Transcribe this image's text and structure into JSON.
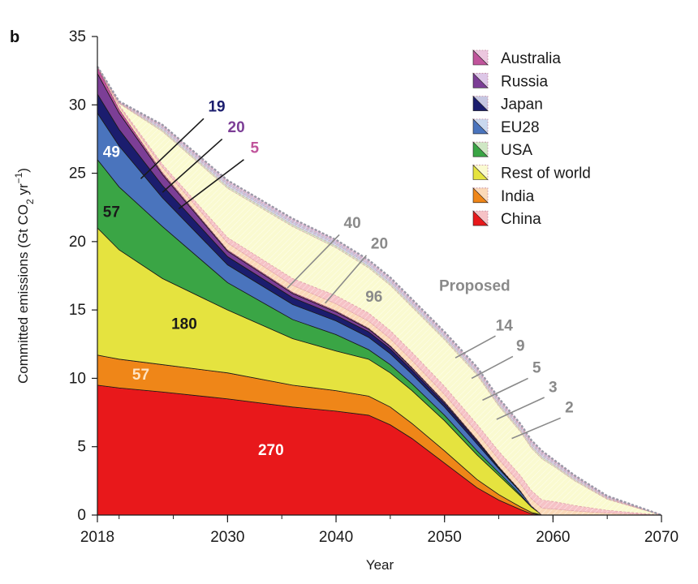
{
  "panel_label": "b",
  "chart_data": {
    "type": "area",
    "stacked": true,
    "title": "",
    "xlabel": "Year",
    "ylabel_main": "Committed emissions (Gt CO",
    "ylabel_sub": "2",
    "ylabel_unit": " yr",
    "ylabel_sup": "−1",
    "ylabel_close": ")",
    "xlim": [
      2018,
      2070
    ],
    "ylim": [
      0,
      35
    ],
    "x_ticks": [
      "2018",
      "2030",
      "2040",
      "2050",
      "2060",
      "2070"
    ],
    "y_ticks": [
      "0",
      "5",
      "10",
      "15",
      "20",
      "25",
      "30",
      "35"
    ],
    "x": [
      2018,
      2020,
      2024,
      2030,
      2036,
      2040,
      2043,
      2045,
      2047,
      2050,
      2053,
      2055,
      2057,
      2058,
      2059,
      2060,
      2062,
      2065,
      2070
    ],
    "existing_series": [
      {
        "name": "China",
        "color": "#e8181b",
        "values": [
          9.5,
          9.3,
          9.0,
          8.5,
          7.9,
          7.6,
          7.3,
          6.6,
          5.6,
          3.8,
          2.0,
          1.1,
          0.4,
          0.1,
          0,
          0,
          0,
          0,
          0
        ]
      },
      {
        "name": "India",
        "color": "#ef8618",
        "values": [
          2.2,
          2.1,
          2.0,
          1.9,
          1.6,
          1.5,
          1.4,
          1.3,
          1.1,
          0.9,
          0.6,
          0.4,
          0.2,
          0.1,
          0,
          0,
          0,
          0,
          0
        ]
      },
      {
        "name": "Rest of world",
        "color": "#e5e33f",
        "values": [
          9.3,
          8.0,
          6.3,
          4.6,
          3.4,
          2.9,
          2.7,
          2.5,
          2.4,
          2.2,
          1.8,
          1.4,
          0.8,
          0.4,
          0,
          0,
          0,
          0,
          0
        ]
      },
      {
        "name": "USA",
        "color": "#3aa545",
        "values": [
          5.0,
          4.6,
          3.8,
          2.0,
          1.4,
          1.2,
          0.7,
          0.6,
          0.5,
          0.4,
          0.3,
          0.2,
          0.1,
          0,
          0,
          0,
          0,
          0,
          0
        ]
      },
      {
        "name": "EU28",
        "color": "#4a74bd",
        "values": [
          3.4,
          3.0,
          2.1,
          1.3,
          1.1,
          1.0,
          0.9,
          0.8,
          0.7,
          0.6,
          0.5,
          0.3,
          0.2,
          0.1,
          0,
          0,
          0,
          0,
          0
        ]
      },
      {
        "name": "Japan",
        "color": "#1b1d6e",
        "values": [
          1.4,
          1.2,
          0.9,
          0.6,
          0.5,
          0.4,
          0.4,
          0.35,
          0.3,
          0.25,
          0.2,
          0.1,
          0.05,
          0,
          0,
          0,
          0,
          0,
          0
        ]
      },
      {
        "name": "Russia",
        "color": "#7c3e96",
        "values": [
          1.5,
          1.2,
          0.8,
          0.4,
          0.3,
          0.25,
          0.2,
          0.18,
          0.15,
          0.12,
          0.1,
          0.05,
          0.03,
          0,
          0,
          0,
          0,
          0,
          0
        ]
      },
      {
        "name": "Australia",
        "color": "#c0549b",
        "values": [
          0.5,
          0.3,
          0.15,
          0.1,
          0.1,
          0.1,
          0.08,
          0.07,
          0.06,
          0.05,
          0.04,
          0.02,
          0.01,
          0,
          0,
          0,
          0,
          0,
          0
        ]
      }
    ],
    "proposed_series": [
      {
        "name": "India",
        "color": "#fbd9b8",
        "values": [
          0,
          0.2,
          0.4,
          0.5,
          0.5,
          0.5,
          0.5,
          0.5,
          0.5,
          0.5,
          0.5,
          0.5,
          0.5,
          0.5,
          0.5,
          0.45,
          0.3,
          0.15,
          0
        ]
      },
      {
        "name": "China",
        "color": "#f6c2c6",
        "values": [
          0,
          0.1,
          0.2,
          0.4,
          0.5,
          0.6,
          0.6,
          0.6,
          0.6,
          0.6,
          0.6,
          0.6,
          0.6,
          0.6,
          0.6,
          0.55,
          0.4,
          0.2,
          0
        ]
      },
      {
        "name": "Rest of world",
        "color": "#fafad0",
        "values": [
          0,
          0.1,
          2.4,
          3.6,
          3.8,
          3.5,
          3.3,
          3.3,
          3.3,
          3.4,
          3.6,
          3.3,
          3.2,
          3.1,
          3.0,
          2.6,
          1.8,
          0.8,
          0
        ]
      },
      {
        "name": "USA",
        "color": "#cfe7c4",
        "values": [
          0,
          0.04,
          0.12,
          0.14,
          0.14,
          0.14,
          0.14,
          0.14,
          0.14,
          0.14,
          0.14,
          0.14,
          0.14,
          0.14,
          0.14,
          0.12,
          0.1,
          0.06,
          0
        ]
      },
      {
        "name": "EU28",
        "color": "#c9d8ee",
        "values": [
          0,
          0.04,
          0.12,
          0.14,
          0.14,
          0.14,
          0.14,
          0.14,
          0.14,
          0.14,
          0.14,
          0.14,
          0.14,
          0.14,
          0.14,
          0.12,
          0.1,
          0.06,
          0
        ]
      },
      {
        "name": "Japan",
        "color": "#c6c7e2",
        "values": [
          0,
          0.04,
          0.12,
          0.14,
          0.14,
          0.14,
          0.14,
          0.14,
          0.14,
          0.14,
          0.14,
          0.14,
          0.14,
          0.14,
          0.14,
          0.12,
          0.1,
          0.06,
          0
        ]
      },
      {
        "name": "Russia",
        "color": "#ddc7e7",
        "values": [
          0,
          0.02,
          0.08,
          0.1,
          0.1,
          0.1,
          0.1,
          0.1,
          0.1,
          0.1,
          0.1,
          0.1,
          0.1,
          0.1,
          0.1,
          0.08,
          0.06,
          0.04,
          0
        ]
      },
      {
        "name": "Australia",
        "color": "#ecc7df",
        "values": [
          0,
          0.02,
          0.05,
          0.06,
          0.06,
          0.06,
          0.06,
          0.06,
          0.06,
          0.06,
          0.06,
          0.06,
          0.06,
          0.06,
          0.06,
          0.05,
          0.04,
          0.03,
          0
        ]
      }
    ],
    "legend": {
      "placement": "top-right",
      "entries": [
        {
          "name": "Australia",
          "color": "#c0549b",
          "light": "#ecc7df"
        },
        {
          "name": "Russia",
          "color": "#7c3e96",
          "light": "#ddc7e7"
        },
        {
          "name": "Japan",
          "color": "#1b1d6e",
          "light": "#c6c7e2"
        },
        {
          "name": "EU28",
          "color": "#4a74bd",
          "light": "#c9d8ee"
        },
        {
          "name": "USA",
          "color": "#3aa545",
          "light": "#cfe7c4"
        },
        {
          "name": "Rest of world",
          "color": "#e5e33f",
          "light": "#fafad0"
        },
        {
          "name": "India",
          "color": "#ef8618",
          "light": "#fbd9b8"
        },
        {
          "name": "China",
          "color": "#e8181b",
          "light": "#f6c2c6"
        }
      ]
    },
    "value_labels": [
      {
        "text": "270",
        "x": 2034,
        "y": 4.4,
        "color": "#ffffff"
      },
      {
        "text": "57",
        "x": 2022,
        "y": 9.9,
        "color": "#ffe3c2"
      },
      {
        "text": "180",
        "x": 2026,
        "y": 13.6,
        "color": "#1a1a1a"
      },
      {
        "text": "57",
        "x": 2019.3,
        "y": 21.8,
        "color": "#1a1a1a"
      },
      {
        "text": "49",
        "x": 2019.3,
        "y": 26.2,
        "color": "#ffffff"
      }
    ],
    "callouts": [
      {
        "text": "19",
        "color": "#1b1d6e",
        "x": 2029,
        "y": 29.5,
        "line_from": [
          2022,
          24.6
        ],
        "line_to": [
          2027.8,
          29.0
        ]
      },
      {
        "text": "20",
        "color": "#7c3e96",
        "x": 2030.8,
        "y": 28.0,
        "line_from": [
          2024,
          23.6
        ],
        "line_to": [
          2029.5,
          27.5
        ]
      },
      {
        "text": "5",
        "color": "#c0549b",
        "x": 2032.5,
        "y": 26.5,
        "line_from": [
          2025.5,
          22.4
        ],
        "line_to": [
          2031.5,
          26.0
        ]
      },
      {
        "text": "40",
        "color": "#8a8a8a",
        "x": 2041.5,
        "y": 21.0,
        "line_from": [
          2035.5,
          16.6
        ],
        "line_to": [
          2040.3,
          20.5
        ]
      },
      {
        "text": "20",
        "color": "#8a8a8a",
        "x": 2044,
        "y": 19.5,
        "line_from": [
          2039,
          15.5
        ],
        "line_to": [
          2042.8,
          19.0
        ]
      },
      {
        "text": "96",
        "color": "#8a8a8a",
        "x": 2043.5,
        "y": 15.6,
        "line_from": null,
        "line_to": null
      },
      {
        "text": "14",
        "color": "#8a8a8a",
        "x": 2055.5,
        "y": 13.5,
        "line_from": [
          2051,
          11.5
        ],
        "line_to": [
          2054.7,
          13.1
        ]
      },
      {
        "text": "9",
        "color": "#8a8a8a",
        "x": 2057,
        "y": 12.0,
        "line_from": [
          2052.5,
          10.0
        ],
        "line_to": [
          2056.3,
          11.6
        ]
      },
      {
        "text": "5",
        "color": "#8a8a8a",
        "x": 2058.5,
        "y": 10.4,
        "line_from": [
          2053.5,
          8.4
        ],
        "line_to": [
          2057.7,
          10.0
        ]
      },
      {
        "text": "3",
        "color": "#8a8a8a",
        "x": 2060,
        "y": 9.0,
        "line_from": [
          2054.8,
          7.0
        ],
        "line_to": [
          2059.2,
          8.6
        ]
      },
      {
        "text": "2",
        "color": "#8a8a8a",
        "x": 2061.5,
        "y": 7.5,
        "line_from": [
          2056.2,
          5.6
        ],
        "line_to": [
          2060.7,
          7.1
        ]
      }
    ],
    "proposed_label": {
      "text": "Proposed",
      "x": 2049.5,
      "y": 16.4
    }
  }
}
